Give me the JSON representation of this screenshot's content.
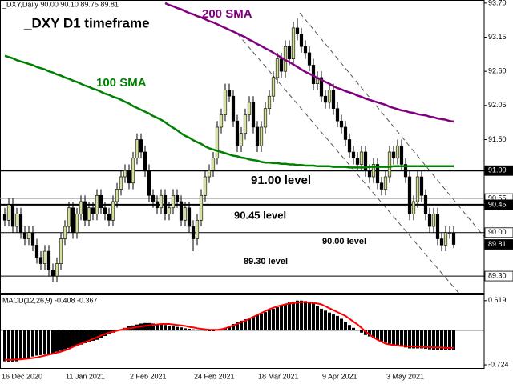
{
  "chart_data": [
    {
      "type": "candlestick",
      "title": "_DXY D1 timeframe",
      "header": "_DXY,Daily  90.00 90.10 89.75 89.81",
      "up_color": "#d4e09b",
      "down_color": "#000000",
      "categories": [
        "16 Dec 2020",
        null,
        null,
        null,
        null,
        null,
        null,
        null,
        null,
        null,
        null,
        null,
        null,
        null,
        null,
        null,
        "11 Jan 2021",
        null,
        null,
        null,
        null,
        null,
        null,
        null,
        null,
        null,
        null,
        null,
        null,
        null,
        null,
        null,
        "2 Feb 2021",
        null,
        null,
        null,
        null,
        null,
        null,
        null,
        null,
        null,
        null,
        null,
        null,
        null,
        null,
        null,
        "24 Feb 2021",
        null,
        null,
        null,
        null,
        null,
        null,
        null,
        null,
        null,
        null,
        null,
        null,
        null,
        null,
        null,
        "18 Mar 2021",
        null,
        null,
        null,
        null,
        null,
        null,
        null,
        null,
        null,
        null,
        null,
        null,
        null,
        null,
        null,
        "9 Apr 2021",
        null,
        null,
        null,
        null,
        null,
        null,
        null,
        null,
        null,
        null,
        null,
        null,
        null,
        null,
        null,
        "3 May 2021",
        null,
        null,
        null,
        null,
        null,
        null,
        null,
        null,
        null,
        null,
        null,
        null,
        null,
        null,
        null,
        null
      ],
      "open": [
        90.3,
        90.2,
        90.45,
        90.1,
        90.3,
        90.0,
        89.9,
        90.0,
        89.8,
        89.6,
        89.5,
        89.7,
        89.4,
        89.3,
        89.5,
        89.9,
        90.1,
        90.4,
        90.0,
        90.3,
        90.5,
        90.2,
        90.4,
        90.3,
        90.6,
        90.4,
        90.3,
        90.2,
        90.5,
        90.7,
        90.9,
        91.0,
        90.8,
        91.2,
        91.5,
        91.3,
        91.0,
        90.6,
        90.5,
        90.4,
        90.6,
        90.3,
        90.4,
        90.6,
        90.5,
        90.2,
        90.4,
        90.1,
        89.9,
        90.2,
        90.6,
        90.9,
        91.0,
        91.2,
        91.7,
        91.9,
        92.3,
        92.2,
        91.8,
        91.4,
        91.6,
        91.9,
        92.1,
        91.7,
        91.4,
        91.7,
        92.0,
        92.2,
        92.5,
        92.8,
        92.6,
        93.0,
        92.8,
        93.3,
        93.2,
        93.0,
        92.9,
        92.7,
        92.4,
        92.5,
        92.2,
        92.1,
        92.3,
        92.0,
        91.8,
        91.7,
        91.5,
        91.3,
        91.2,
        91.1,
        91.3,
        91.0,
        90.9,
        91.1,
        90.8,
        90.7,
        90.9,
        91.3,
        91.2,
        91.4,
        91.1,
        90.9,
        90.3,
        90.5,
        90.9,
        90.6,
        90.3,
        90.1,
        90.3,
        89.9,
        89.8,
        90.0,
        90.0
      ],
      "high": [
        90.4,
        90.55,
        90.55,
        90.4,
        90.4,
        90.1,
        90.1,
        90.1,
        89.9,
        89.7,
        89.8,
        89.8,
        89.5,
        89.6,
        90.0,
        90.2,
        90.5,
        90.5,
        90.4,
        90.6,
        90.6,
        90.5,
        90.5,
        90.7,
        90.7,
        90.5,
        90.4,
        90.6,
        90.8,
        91.0,
        91.1,
        91.1,
        91.3,
        91.6,
        91.6,
        91.4,
        91.1,
        90.7,
        90.6,
        90.7,
        90.7,
        90.5,
        90.7,
        90.7,
        90.6,
        90.5,
        90.5,
        90.2,
        90.3,
        90.7,
        91.0,
        91.1,
        91.3,
        91.8,
        92.0,
        92.4,
        92.4,
        92.3,
        91.9,
        91.7,
        92.0,
        92.2,
        92.2,
        91.8,
        91.8,
        92.1,
        92.3,
        92.6,
        92.9,
        92.9,
        93.1,
        93.1,
        93.4,
        93.45,
        93.3,
        93.1,
        93.0,
        92.8,
        92.6,
        92.6,
        92.3,
        92.4,
        92.4,
        92.1,
        91.9,
        91.8,
        91.6,
        91.4,
        91.3,
        91.4,
        91.4,
        91.1,
        91.2,
        91.2,
        90.9,
        91.0,
        91.4,
        91.4,
        91.5,
        91.5,
        91.2,
        91.0,
        90.6,
        91.0,
        91.0,
        90.7,
        90.4,
        90.4,
        90.4,
        90.0,
        90.1,
        90.1,
        90.1
      ],
      "low": [
        90.1,
        90.1,
        90.0,
        90.0,
        89.9,
        89.8,
        89.8,
        89.7,
        89.5,
        89.4,
        89.4,
        89.3,
        89.2,
        89.2,
        89.4,
        89.8,
        90.0,
        89.9,
        89.9,
        90.2,
        90.1,
        90.1,
        90.2,
        90.2,
        90.3,
        90.2,
        90.1,
        90.1,
        90.4,
        90.6,
        90.8,
        90.7,
        90.7,
        91.1,
        91.2,
        90.9,
        90.5,
        90.4,
        90.3,
        90.3,
        90.2,
        90.2,
        90.3,
        90.4,
        90.1,
        90.1,
        90.0,
        89.7,
        89.8,
        90.1,
        90.5,
        90.8,
        90.9,
        91.1,
        91.6,
        91.8,
        92.1,
        91.7,
        91.3,
        91.3,
        91.5,
        91.8,
        91.6,
        91.3,
        91.3,
        91.6,
        91.9,
        92.1,
        92.4,
        92.5,
        92.5,
        92.7,
        92.7,
        93.1,
        92.9,
        92.8,
        92.6,
        92.3,
        92.3,
        92.1,
        92.0,
        92.0,
        91.9,
        91.7,
        91.6,
        91.4,
        91.2,
        91.1,
        91.0,
        91.0,
        90.9,
        90.8,
        90.8,
        90.7,
        90.6,
        90.6,
        90.8,
        91.1,
        91.1,
        91.0,
        90.8,
        90.2,
        90.2,
        90.4,
        90.5,
        90.2,
        90.0,
        90.0,
        89.8,
        89.7,
        89.7,
        89.9,
        89.75
      ],
      "close": [
        90.2,
        90.45,
        90.1,
        90.3,
        90.0,
        89.9,
        90.0,
        89.8,
        89.6,
        89.5,
        89.7,
        89.4,
        89.3,
        89.5,
        89.9,
        90.1,
        90.4,
        90.0,
        90.3,
        90.5,
        90.2,
        90.4,
        90.3,
        90.6,
        90.4,
        90.3,
        90.2,
        90.5,
        90.7,
        90.9,
        91.0,
        90.8,
        91.2,
        91.5,
        91.3,
        91.0,
        90.6,
        90.5,
        90.4,
        90.6,
        90.3,
        90.4,
        90.6,
        90.5,
        90.2,
        90.4,
        90.1,
        89.9,
        90.2,
        90.6,
        90.9,
        91.0,
        91.2,
        91.7,
        91.9,
        92.3,
        92.2,
        91.8,
        91.4,
        91.6,
        91.9,
        92.1,
        91.7,
        91.4,
        91.7,
        92.0,
        92.2,
        92.5,
        92.8,
        92.6,
        93.0,
        92.8,
        93.3,
        93.2,
        93.0,
        92.9,
        92.7,
        92.4,
        92.5,
        92.2,
        92.1,
        92.3,
        92.0,
        91.8,
        91.7,
        91.5,
        91.3,
        91.2,
        91.1,
        91.3,
        91.0,
        90.9,
        91.1,
        90.8,
        90.7,
        90.9,
        91.3,
        91.2,
        91.4,
        91.1,
        90.9,
        90.3,
        90.5,
        90.9,
        90.6,
        90.3,
        90.1,
        90.3,
        89.9,
        89.8,
        90.0,
        90.0,
        89.81
      ],
      "series": [
        {
          "name": "200 SMA",
          "color": "#800080",
          "values": [
            null,
            null,
            null,
            null,
            null,
            null,
            null,
            null,
            null,
            null,
            null,
            null,
            null,
            null,
            null,
            null,
            null,
            null,
            null,
            null,
            null,
            null,
            null,
            null,
            null,
            null,
            null,
            null,
            null,
            null,
            null,
            null,
            null,
            null,
            null,
            null,
            null,
            null,
            null,
            null,
            93.7,
            93.67,
            93.65,
            93.62,
            93.6,
            93.57,
            93.54,
            93.52,
            93.49,
            93.47,
            93.44,
            93.41,
            93.39,
            93.36,
            93.33,
            93.3,
            93.27,
            93.24,
            93.21,
            93.18,
            93.15,
            93.11,
            93.08,
            93.04,
            93.01,
            92.97,
            92.94,
            92.9,
            92.86,
            92.82,
            92.78,
            92.75,
            92.71,
            92.67,
            92.63,
            92.59,
            92.56,
            92.53,
            92.49,
            92.46,
            92.43,
            92.4,
            92.36,
            92.33,
            92.31,
            92.28,
            92.26,
            92.24,
            92.21,
            92.19,
            92.16,
            92.14,
            92.12,
            92.1,
            92.08,
            92.06,
            92.03,
            92.01,
            91.99,
            91.97,
            91.96,
            91.94,
            91.93,
            91.91,
            91.9,
            91.89,
            91.87,
            91.86,
            91.84,
            91.83,
            91.82,
            91.8,
            91.79
          ]
        },
        {
          "name": "100 SMA",
          "color": "#008000",
          "values": [
            92.85,
            92.83,
            92.81,
            92.78,
            92.76,
            92.74,
            92.72,
            92.7,
            92.67,
            92.65,
            92.63,
            92.6,
            92.58,
            92.55,
            92.53,
            92.5,
            92.48,
            92.45,
            92.43,
            92.4,
            92.37,
            92.35,
            92.32,
            92.3,
            92.27,
            92.24,
            92.22,
            92.19,
            92.17,
            92.14,
            92.11,
            92.08,
            92.04,
            92.01,
            91.98,
            91.95,
            91.92,
            91.88,
            91.85,
            91.82,
            91.78,
            91.73,
            91.69,
            91.65,
            91.6,
            91.56,
            91.53,
            91.49,
            91.46,
            91.43,
            91.39,
            91.36,
            91.34,
            91.32,
            91.3,
            91.28,
            91.26,
            91.24,
            91.23,
            91.21,
            91.2,
            91.18,
            91.17,
            91.16,
            91.14,
            91.13,
            91.13,
            91.12,
            91.12,
            91.11,
            91.11,
            91.1,
            91.1,
            91.09,
            91.09,
            91.08,
            91.08,
            91.08,
            91.07,
            91.07,
            91.07,
            91.07,
            91.06,
            91.06,
            91.06,
            91.06,
            91.05,
            91.05,
            91.05,
            91.05,
            91.05,
            91.06,
            91.06,
            91.06,
            91.06,
            91.06,
            91.06,
            91.07,
            91.07,
            91.07,
            91.07,
            91.07,
            91.07,
            91.07,
            91.07,
            91.07,
            91.07,
            91.07,
            91.07,
            91.07,
            91.07,
            91.07,
            91.07
          ]
        }
      ],
      "levels": [
        {
          "value": 91.0,
          "label": "91.00 level",
          "bold": true
        },
        {
          "value": 90.55
        },
        {
          "value": 90.45,
          "label": "90.45 level",
          "bold": true
        },
        {
          "value": 90.0,
          "label": "90.00 level"
        },
        {
          "value": 89.3,
          "label": "89.30 level"
        }
      ],
      "ylim": [
        89.03,
        93.75
      ],
      "yticks": [
        {
          "value": 93.7,
          "label": "93.70"
        },
        {
          "value": 93.15,
          "label": "93.15"
        },
        {
          "value": 92.6,
          "label": "92.60"
        },
        {
          "value": 92.05,
          "label": "92.05"
        },
        {
          "value": 91.5,
          "label": "91.50"
        },
        {
          "value": 91.0,
          "label": "91.00"
        },
        {
          "value": 90.55,
          "label": "90.55"
        },
        {
          "value": 90.45,
          "label": "90.45"
        },
        {
          "value": 90.0,
          "label": "90.00"
        },
        {
          "value": 89.81,
          "label": "89.81"
        },
        {
          "value": 89.3,
          "label": "89.30"
        }
      ]
    },
    {
      "type": "macd",
      "title": "MACD(12,26,9) -0.408 -0.367",
      "series": [
        {
          "style": "bar",
          "color": "#000000",
          "values": [
            -0.65,
            -0.66,
            -0.66,
            -0.65,
            -0.62,
            -0.6,
            -0.58,
            -0.55,
            -0.53,
            -0.52,
            -0.51,
            -0.5,
            -0.48,
            -0.45,
            -0.43,
            -0.4,
            -0.37,
            -0.35,
            -0.32,
            -0.3,
            -0.27,
            -0.25,
            -0.22,
            -0.2,
            -0.16,
            -0.12,
            -0.08,
            -0.05,
            -0.02,
            0.02,
            0.05,
            0.08,
            0.1,
            0.12,
            0.14,
            0.15,
            0.15,
            0.14,
            0.13,
            0.12,
            0.11,
            0.09,
            0.08,
            0.07,
            0.06,
            0.04,
            0.03,
            0.02,
            0.01,
            0,
            -0.01,
            -0.02,
            -0.02,
            0,
            0.03,
            0.05,
            0.09,
            0.13,
            0.17,
            0.2,
            0.23,
            0.26,
            0.29,
            0.32,
            0.35,
            0.38,
            0.42,
            0.45,
            0.48,
            0.51,
            0.55,
            0.58,
            0.6,
            0.62,
            0.62,
            0.61,
            0.6,
            0.56,
            0.51,
            0.45,
            0.41,
            0.37,
            0.33,
            0.3,
            0.24,
            0.18,
            0.11,
            0.05,
            0,
            -0.05,
            -0.1,
            -0.13,
            -0.17,
            -0.2,
            -0.23,
            -0.26,
            -0.28,
            -0.3,
            -0.32,
            -0.34,
            -0.36,
            -0.38,
            -0.38,
            -0.38,
            -0.38,
            -0.39,
            -0.4,
            -0.41,
            -0.42,
            -0.42,
            -0.41,
            -0.41,
            -0.408
          ]
        },
        {
          "style": "line",
          "color": "#ff0000",
          "values": [
            -0.62,
            -0.62,
            -0.62,
            -0.61,
            -0.61,
            -0.6,
            -0.59,
            -0.58,
            -0.57,
            -0.55,
            -0.53,
            -0.51,
            -0.49,
            -0.47,
            -0.45,
            -0.42,
            -0.39,
            -0.35,
            -0.31,
            -0.28,
            -0.25,
            -0.22,
            -0.18,
            -0.15,
            -0.11,
            -0.08,
            -0.05,
            -0.03,
            -0.01,
            0.01,
            0.03,
            0.04,
            0.05,
            0.07,
            0.08,
            0.09,
            0.1,
            0.11,
            0.12,
            0.13,
            0.13,
            0.13,
            0.12,
            0.11,
            0.1,
            0.09,
            0.07,
            0.06,
            0.04,
            0.03,
            0.02,
            0.01,
            0.01,
            0.01,
            0.02,
            0.04,
            0.07,
            0.1,
            0.13,
            0.17,
            0.2,
            0.24,
            0.28,
            0.32,
            0.36,
            0.4,
            0.44,
            0.47,
            0.5,
            0.52,
            0.54,
            0.56,
            0.57,
            0.58,
            0.59,
            0.59,
            0.58,
            0.57,
            0.56,
            0.54,
            0.5,
            0.46,
            0.42,
            0.38,
            0.34,
            0.3,
            0.24,
            0.18,
            0.12,
            0.05,
            -0.03,
            -0.09,
            -0.15,
            -0.2,
            -0.24,
            -0.28,
            -0.3,
            -0.31,
            -0.32,
            -0.33,
            -0.33,
            -0.34,
            -0.34,
            -0.34,
            -0.35,
            -0.35,
            -0.35,
            -0.36,
            -0.36,
            -0.36,
            -0.37,
            -0.37,
            -0.367
          ]
        }
      ],
      "ylim": [
        -0.79,
        0.75
      ],
      "yticks": [
        {
          "value": 0.619,
          "label": "0.619"
        },
        {
          "value": -0.724,
          "label": "-0.724"
        }
      ]
    }
  ]
}
